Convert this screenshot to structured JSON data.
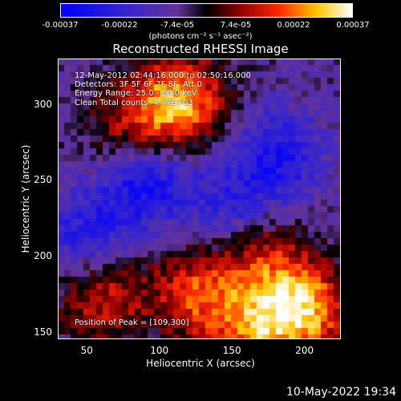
{
  "colorbar": {
    "ticks": [
      "-0.00037",
      "-0.00022",
      "-7.4e-05",
      "7.4e-05",
      "0.00022",
      "0.00037"
    ],
    "units": "(photons cm⁻² s⁻¹ asec⁻²)"
  },
  "info": {
    "time": "12-May-2012 02:44:16.000 to 02:50:16.000",
    "detectors": "Detectors: 3F 5F 6F 7F 8F, Att 0",
    "energy": "Energy Range: 25.0 - 50.0 keV",
    "clean": "Clean     Total counts: 4.47E+03",
    "peak": "Position of Peak = [109,300]"
  },
  "footer": "10-May-2022 19:34",
  "chart_data": {
    "type": "heatmap",
    "title": "Reconstructed RHESSI Image",
    "xlabel": "Heliocentric X (arcsec)",
    "ylabel": "Heliocentric Y (arcsec)",
    "xlim": [
      30,
      225
    ],
    "ylim": [
      145,
      330
    ],
    "xticks": [
      "50",
      "100",
      "150",
      "200"
    ],
    "xtick_values": [
      50,
      100,
      150,
      200
    ],
    "yticks": [
      "150",
      "200",
      "250",
      "300"
    ],
    "ytick_values": [
      150,
      200,
      250,
      300
    ],
    "zlim": [
      -0.00037,
      0.00037
    ],
    "colormap": "blue-purple-black-red-yellow-white",
    "peak_position": [
      109,
      300
    ],
    "bright_regions": [
      {
        "x": 115,
        "y": 302,
        "intensity": 0.00035
      },
      {
        "x": 80,
        "y": 285,
        "intensity": 0.0002
      },
      {
        "x": 60,
        "y": 175,
        "intensity": 0.00025
      },
      {
        "x": 125,
        "y": 175,
        "intensity": 0.00025
      },
      {
        "x": 170,
        "y": 200,
        "intensity": 0.0002
      },
      {
        "x": 200,
        "y": 165,
        "intensity": 0.00035
      },
      {
        "x": 165,
        "y": 150,
        "intensity": 0.00025
      }
    ],
    "dark_regions": [
      {
        "x": 90,
        "y": 250,
        "intensity": -0.00025
      },
      {
        "x": 180,
        "y": 265,
        "intensity": -0.0002
      },
      {
        "x": 50,
        "y": 210,
        "intensity": -0.0002
      },
      {
        "x": 150,
        "y": 230,
        "intensity": -0.00015
      }
    ]
  }
}
